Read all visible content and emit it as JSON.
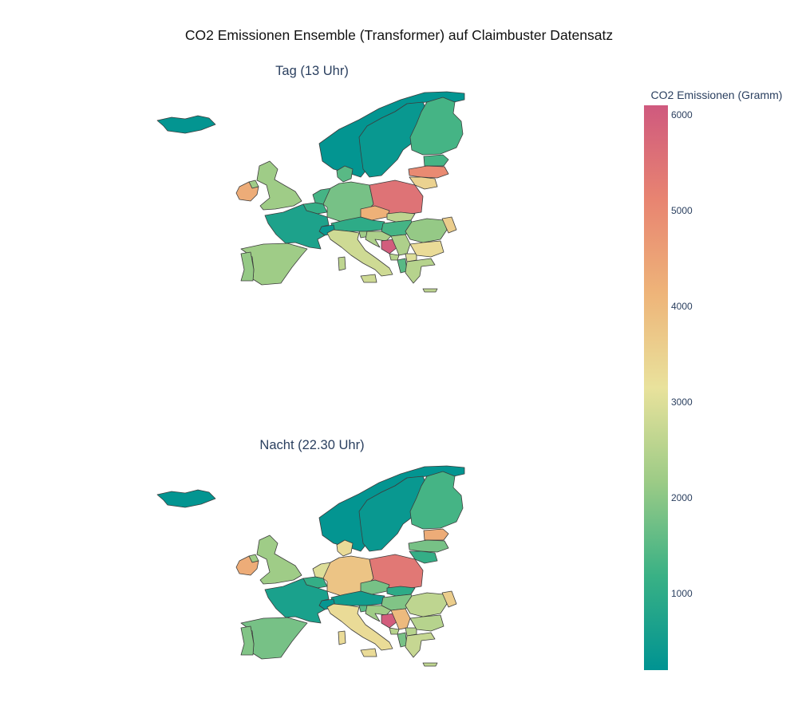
{
  "title": "CO2 Emissionen Ensemble (Transformer) auf Claimbuster Datensatz",
  "colorscale": [
    "#009392",
    "#39b185",
    "#9ccb86",
    "#e9e29c",
    "#eeb479",
    "#e88471",
    "#cf597e"
  ],
  "colorbar": {
    "title": "CO2 Emissionen (Gramm)",
    "range": [
      200,
      6100
    ],
    "ticks": [
      "1000",
      "2000",
      "3000",
      "4000",
      "5000",
      "6000"
    ]
  },
  "maps": [
    {
      "title": "Tag (13 Uhr)",
      "values": {
        "iceland": 250,
        "norway": 250,
        "sweden": 350,
        "finland": 1300,
        "estonia": 1300,
        "latvia": 5000,
        "lithuania": 3500,
        "uk": 2200,
        "ireland": 4300,
        "northern-ireland": 2200,
        "denmark": 1500,
        "netherlands": 1300,
        "belgium": 1100,
        "germany": 1800,
        "poland": 5500,
        "czechia": 4200,
        "slovakia": 2600,
        "austria": 1000,
        "hungary": 1300,
        "switzerland": 350,
        "france": 700,
        "italy": 2800,
        "slovenia": 2200,
        "croatia": 2400,
        "bosnia": 6000,
        "serbia": 2400,
        "montenegro": 2500,
        "romania": 2100,
        "moldova": 3600,
        "bulgaria": 3300,
        "north-macedonia": 3000,
        "albania": 1500,
        "greece": 2500,
        "spain": 2200,
        "portugal": 2100,
        "sardinia": 2600,
        "sicily": 2800,
        "crete": 2600
      }
    },
    {
      "title": "Nacht (22.30 Uhr)",
      "values": {
        "iceland": 250,
        "norway": 250,
        "sweden": 350,
        "finland": 1300,
        "estonia": 4300,
        "latvia": 1800,
        "lithuania": 1100,
        "uk": 2200,
        "ireland": 4300,
        "northern-ireland": 2200,
        "denmark": 3300,
        "netherlands": 3000,
        "belgium": 1100,
        "germany": 3800,
        "poland": 5400,
        "czechia": 1800,
        "slovakia": 1000,
        "austria": 500,
        "hungary": 1900,
        "switzerland": 300,
        "france": 650,
        "italy": 3300,
        "slovenia": 1500,
        "croatia": 2200,
        "bosnia": 6000,
        "serbia": 4000,
        "montenegro": 2500,
        "romania": 2600,
        "moldova": 3600,
        "bulgaria": 2500,
        "north-macedonia": 2500,
        "albania": 1800,
        "greece": 2700,
        "spain": 1800,
        "portugal": 1900,
        "sardinia": 3300,
        "sicily": 3300,
        "crete": 2600
      }
    }
  ]
}
